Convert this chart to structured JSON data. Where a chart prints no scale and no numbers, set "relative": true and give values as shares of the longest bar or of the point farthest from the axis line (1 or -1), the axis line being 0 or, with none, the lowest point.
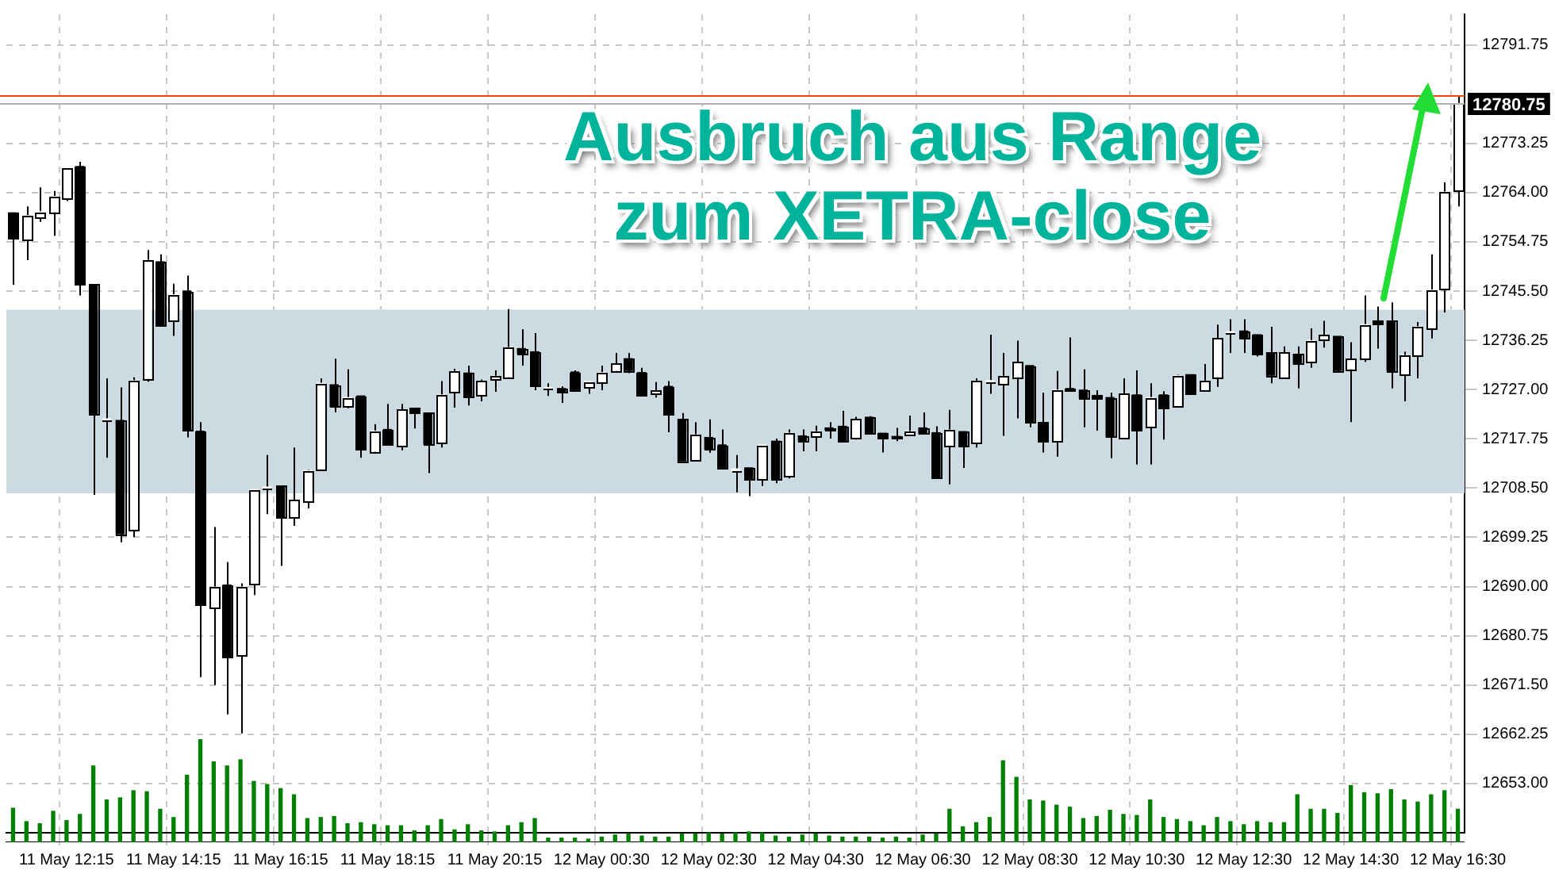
{
  "chart_data": [
    {
      "type": "candlestick",
      "categories": [
        null,
        null,
        null,
        null,
        "11 May 12:15",
        null,
        null,
        null,
        null,
        null,
        null,
        null,
        "11 May 14:15",
        null,
        null,
        null,
        null,
        null,
        null,
        null,
        "11 May 16:15",
        null,
        null,
        null,
        null,
        null,
        null,
        null,
        "11 May 18:15",
        null,
        null,
        null,
        null,
        null,
        null,
        null,
        "11 May 20:15",
        null,
        null,
        null,
        null,
        null,
        null,
        null,
        "12 May 00:30",
        null,
        null,
        null,
        null,
        null,
        null,
        null,
        "12 May 02:30",
        null,
        null,
        null,
        null,
        null,
        null,
        null,
        "12 May 04:30",
        null,
        null,
        null,
        null,
        null,
        null,
        null,
        "12 May 06:30",
        null,
        null,
        null,
        null,
        null,
        null,
        null,
        "12 May 08:30",
        null,
        null,
        null,
        null,
        null,
        null,
        null,
        "12 May 10:30",
        null,
        null,
        null,
        null,
        null,
        null,
        null,
        "12 May 12:30",
        null,
        null,
        null,
        null,
        null,
        null,
        null,
        "12 May 14:30",
        null,
        null,
        null,
        null,
        null,
        null,
        null,
        "12 May 16:30"
      ],
      "series": [
        {
          "colors": [
            "#000000",
            "#ffffff",
            "#ffffff",
            "#ffffff",
            "#ffffff",
            "#000000",
            "#000000",
            "#ffffff",
            "#000000",
            "#ffffff",
            "#ffffff",
            "#000000",
            "#ffffff",
            "#000000",
            "#000000",
            "#ffffff",
            "#000000",
            "#ffffff",
            "#ffffff",
            "#ffffff",
            "#000000",
            "#ffffff",
            "#ffffff",
            "#ffffff",
            "#000000",
            "#ffffff",
            "#000000",
            "#ffffff",
            "#000000",
            "#ffffff",
            "#000000",
            "#000000",
            "#ffffff",
            "#ffffff",
            "#000000",
            "#ffffff",
            "#ffffff",
            "#ffffff",
            "#000000",
            "#000000",
            "#ffffff",
            "#000000",
            "#000000",
            "#ffffff",
            "#ffffff",
            "#ffffff",
            "#000000",
            "#000000",
            "#ffffff",
            "#000000",
            "#000000",
            "#ffffff",
            "#000000",
            "#000000",
            "#ffffff",
            "#000000",
            "#ffffff",
            "#000000",
            "#ffffff",
            "#000000",
            "#ffffff",
            "#000000",
            "#000000",
            "#ffffff",
            "#000000",
            "#000000",
            "#000000",
            "#ffffff",
            "#000000",
            "#000000",
            "#ffffff",
            "#000000",
            "#ffffff",
            "#ffffff",
            "#ffffff",
            "#ffffff",
            "#000000",
            "#000000",
            "#ffffff",
            "#000000",
            "#000000",
            "#000000",
            "#000000",
            "#ffffff",
            "#000000",
            "#ffffff",
            "#000000",
            "#ffffff",
            "#000000",
            "#ffffff",
            "#ffffff",
            "#ffffff",
            "#000000",
            "#000000",
            "#000000",
            "#ffffff",
            "#000000",
            "#ffffff",
            "#ffffff",
            "#000000",
            "#ffffff",
            "#ffffff",
            "#000000",
            "#000000",
            "#ffffff",
            "#ffffff",
            "#ffffff",
            "#ffffff",
            "#ffffff"
          ],
          "ohlc": [
            [
              12760.2,
              12760.2,
              12746.7,
              12755.4
            ],
            [
              12755.1,
              12761.4,
              12751.3,
              12759.7
            ],
            [
              12759.3,
              12765.0,
              12758.5,
              12760.4
            ],
            [
              12760.4,
              12764.3,
              12755.9,
              12763.3
            ],
            [
              12762.9,
              12768.6,
              12762.4,
              12768.6
            ],
            [
              12768.9,
              12769.8,
              12744.7,
              12746.9
            ],
            [
              12746.7,
              12746.7,
              12707.2,
              12722.4
            ],
            [
              12721.2,
              12729.1,
              12714.2,
              12721.2
            ],
            [
              12721.2,
              12727.4,
              12698.3,
              12699.9
            ],
            [
              12700.7,
              12729.3,
              12699.3,
              12728.7
            ],
            [
              12729.1,
              12753.2,
              12728.5,
              12751.3
            ],
            [
              12751.0,
              12752.4,
              12739.2,
              12739.2
            ],
            [
              12739.9,
              12746.9,
              12737.1,
              12744.8
            ],
            [
              12745.5,
              12748.4,
              12718.0,
              12719.5
            ],
            [
              12719.2,
              12720.9,
              12673.0,
              12686.7
            ],
            [
              12686.0,
              12701.2,
              12671.5,
              12689.9
            ],
            [
              12690.3,
              12694.6,
              12666.0,
              12676.8
            ],
            [
              12677.1,
              12690.6,
              12662.4,
              12689.9
            ],
            [
              12690.4,
              12708.2,
              12688.4,
              12708.2
            ],
            [
              12708.4,
              12714.7,
              12703.6,
              12708.4
            ],
            [
              12708.9,
              12708.9,
              12693.9,
              12703.1
            ],
            [
              12703.1,
              12716.1,
              12701.4,
              12706.2
            ],
            [
              12706.0,
              12712.0,
              12704.7,
              12711.8
            ],
            [
              12712.1,
              12729.1,
              12712.1,
              12728.2
            ],
            [
              12727.9,
              12732.8,
              12722.7,
              12723.8
            ],
            [
              12723.8,
              12730.8,
              12723.5,
              12725.5
            ],
            [
              12725.8,
              12725.8,
              12714.2,
              12715.8
            ],
            [
              12715.4,
              12720.5,
              12715.2,
              12719.2
            ],
            [
              12719.5,
              12724.3,
              12716.8,
              12716.8
            ],
            [
              12716.4,
              12724.3,
              12715.6,
              12723.2
            ],
            [
              12723.5,
              12723.5,
              12719.7,
              12722.6
            ],
            [
              12722.6,
              12722.6,
              12711.3,
              12716.8
            ],
            [
              12717.1,
              12728.6,
              12716.1,
              12726.0
            ],
            [
              12726.6,
              12730.9,
              12723.6,
              12730.4
            ],
            [
              12730.1,
              12731.5,
              12724.0,
              12725.8
            ],
            [
              12726.0,
              12728.9,
              12724.8,
              12728.6
            ],
            [
              12729.0,
              12730.6,
              12726.6,
              12729.5
            ],
            [
              12729.4,
              12742.1,
              12729.1,
              12734.9
            ],
            [
              12734.7,
              12738.3,
              12731.5,
              12733.8
            ],
            [
              12734.1,
              12737.6,
              12726.9,
              12727.7
            ],
            [
              12727.1,
              12728.2,
              12725.8,
              12727.1
            ],
            [
              12727.2,
              12727.6,
              12724.5,
              12726.6
            ],
            [
              12730.3,
              12730.6,
              12726.8,
              12727.0
            ],
            [
              12727.5,
              12728.5,
              12726.2,
              12728.5
            ],
            [
              12728.4,
              12731.5,
              12726.9,
              12730.2
            ],
            [
              12730.6,
              12733.9,
              12730.3,
              12731.8
            ],
            [
              12732.8,
              12733.9,
              12730.1,
              12730.6
            ],
            [
              12730.2,
              12731.1,
              12725.7,
              12725.9
            ],
            [
              12726.3,
              12728.4,
              12725.5,
              12726.8
            ],
            [
              12727.6,
              12728.6,
              12719.0,
              12722.3
            ],
            [
              12721.4,
              12722.6,
              12713.6,
              12713.6
            ],
            [
              12713.9,
              12720.9,
              12713.9,
              12718.5
            ],
            [
              12718.0,
              12721.4,
              12715.1,
              12715.8
            ],
            [
              12716.6,
              12719.5,
              12712.4,
              12712.4
            ],
            [
              12711.8,
              12714.7,
              12707.7,
              12711.8
            ],
            [
              12712.3,
              12712.3,
              12707.0,
              12710.3
            ],
            [
              12710.3,
              12716.6,
              12708.9,
              12716.6
            ],
            [
              12717.3,
              12717.8,
              12709.4,
              12710.3
            ],
            [
              12710.8,
              12719.5,
              12710.3,
              12718.8
            ],
            [
              12718.3,
              12719.5,
              12715.4,
              12717.4
            ],
            [
              12718.2,
              12720.2,
              12715.4,
              12719.1
            ],
            [
              12719.8,
              12720.9,
              12717.8,
              12719.4
            ],
            [
              12720.1,
              12723.0,
              12717.3,
              12717.3
            ],
            [
              12717.9,
              12721.9,
              12717.6,
              12721.4
            ],
            [
              12721.8,
              12722.0,
              12718.7,
              12718.7
            ],
            [
              12718.8,
              12718.8,
              12715.2,
              12717.9
            ],
            [
              12718.2,
              12719.8,
              12717.3,
              12717.9
            ],
            [
              12718.5,
              12722.1,
              12718.5,
              12719.1
            ],
            [
              12719.8,
              12722.7,
              12718.7,
              12718.7
            ],
            [
              12718.9,
              12720.1,
              12710.3,
              12710.6
            ],
            [
              12716.5,
              12723.2,
              12709.2,
              12719.4
            ],
            [
              12719.1,
              12719.1,
              12712.3,
              12716.4
            ],
            [
              12717.1,
              12729.1,
              12716.1,
              12728.6
            ],
            [
              12728.4,
              12737.3,
              12726.2,
              12728.4
            ],
            [
              12728.1,
              12733.9,
              12718.3,
              12729.5
            ],
            [
              12729.4,
              12736.2,
              12721.6,
              12732.1
            ],
            [
              12731.5,
              12731.5,
              12719.9,
              12720.9
            ],
            [
              12720.8,
              12726.4,
              12715.2,
              12717.3
            ],
            [
              12717.3,
              12730.5,
              12714.4,
              12726.9
            ],
            [
              12727.2,
              12736.8,
              12726.8,
              12726.8
            ],
            [
              12726.9,
              12730.8,
              12719.9,
              12725.4
            ],
            [
              12725.9,
              12726.9,
              12719.3,
              12725.4
            ],
            [
              12725.5,
              12726.4,
              12714.1,
              12718.1
            ],
            [
              12718.0,
              12729.1,
              12718.0,
              12726.2
            ],
            [
              12726.0,
              12730.6,
              12712.9,
              12719.5
            ],
            [
              12719.9,
              12728.2,
              12712.9,
              12725.5
            ],
            [
              12726.0,
              12726.7,
              12717.6,
              12723.7
            ],
            [
              12724.0,
              12729.8,
              12724.0,
              12729.6
            ],
            [
              12729.8,
              12729.8,
              12726.2,
              12726.2
            ],
            [
              12727.0,
              12731.8,
              12727.0,
              12728.6
            ],
            [
              12729.4,
              12739.2,
              12727.5,
              12736.6
            ],
            [
              12737.6,
              12740.2,
              12733.9,
              12737.6
            ],
            [
              12738.0,
              12740.2,
              12733.9,
              12736.8
            ],
            [
              12737.3,
              12737.3,
              12733.2,
              12733.8
            ],
            [
              12733.9,
              12738.8,
              12728.2,
              12729.7
            ],
            [
              12729.4,
              12735.1,
              12729.1,
              12733.9
            ],
            [
              12733.6,
              12735.1,
              12727.2,
              12731.8
            ],
            [
              12732.3,
              12738.5,
              12731.1,
              12736.2
            ],
            [
              12736.4,
              12739.9,
              12734.9,
              12737.2
            ],
            [
              12737.0,
              12737.0,
              12730.3,
              12730.6
            ],
            [
              12730.9,
              12735.9,
              12720.9,
              12732.7
            ],
            [
              12732.8,
              12744.7,
              12732.2,
              12739.2
            ],
            [
              12739.9,
              12742.6,
              12734.7,
              12739.4
            ],
            [
              12739.9,
              12743.4,
              12727.2,
              12730.5
            ],
            [
              12729.8,
              12734.1,
              12724.8,
              12733.4
            ],
            [
              12733.5,
              12739.7,
              12729.1,
              12738.8
            ],
            [
              12738.5,
              12752.4,
              12736.6,
              12745.7
            ],
            [
              12746.0,
              12765.9,
              12741.5,
              12764.1
            ],
            [
              12764.5,
              12782.3,
              12761.4,
              12780.75
            ]
          ]
        }
      ],
      "ylim": [
        12643.75,
        12797.5
      ],
      "yticks": [
        {
          "value": 12653,
          "label": "12653.00"
        },
        {
          "value": 12662.25,
          "label": "12662.25"
        },
        {
          "value": 12671.5,
          "label": "12671.50"
        },
        {
          "value": 12680.75,
          "label": "12680.75"
        },
        {
          "value": 12690,
          "label": "12690.00"
        },
        {
          "value": 12699.25,
          "label": "12699.25"
        },
        {
          "value": 12708.5,
          "label": "12708.50"
        },
        {
          "value": 12717.75,
          "label": "12717.75"
        },
        {
          "value": 12727,
          "label": "12727.00"
        },
        {
          "value": 12736.25,
          "label": "12736.25"
        },
        {
          "value": 12745.5,
          "label": "12745.50"
        },
        {
          "value": 12754.75,
          "label": "12754.75"
        },
        {
          "value": 12764,
          "label": "12764.00"
        },
        {
          "value": 12773.25,
          "label": "12773.25"
        },
        {
          "value": 12791.75,
          "label": "12791.75"
        }
      ],
      "grid": true,
      "ref_lines": [
        {
          "axis": "y",
          "value": 12782.25,
          "color": "#ff4500"
        },
        {
          "axis": "y",
          "value": 12780.75,
          "label": "12780.75",
          "color": "#b0b0b0"
        }
      ],
      "bands": [
        {
          "axis": "y",
          "from": 12707.5,
          "to": 12742,
          "color": "#ccdae1"
        }
      ],
      "annotations": [
        "Ausbruch aus Range zum XETRA-close"
      ]
    },
    {
      "type": "bar",
      "relative": true,
      "color": "#008000",
      "categories": [
        null,
        null,
        null,
        null,
        null,
        null,
        null,
        null,
        null,
        null,
        null,
        null,
        null,
        null,
        null,
        null,
        null,
        null,
        null,
        null,
        null,
        null,
        null,
        null,
        null,
        null,
        null,
        null,
        null,
        null,
        null,
        null,
        null,
        null,
        null,
        null,
        null,
        null,
        null,
        null,
        null,
        null,
        null,
        null,
        null,
        null,
        null,
        null,
        null,
        null,
        null,
        null,
        null,
        null,
        null,
        null,
        null,
        null,
        null,
        null,
        null,
        null,
        null,
        null,
        null,
        null,
        null,
        null,
        null,
        null,
        null,
        null,
        null,
        null,
        null,
        null,
        null,
        null,
        null,
        null,
        null,
        null,
        null,
        null,
        null,
        null,
        null,
        null,
        null,
        null,
        null,
        null,
        null,
        null,
        null,
        null,
        null,
        null,
        null,
        null,
        null,
        null,
        null,
        null,
        null,
        null,
        null,
        null,
        null
      ],
      "values": [
        0.33,
        0.2,
        0.18,
        0.3,
        0.21,
        0.27,
        0.74,
        0.41,
        0.43,
        0.5,
        0.49,
        0.32,
        0.24,
        0.65,
        1,
        0.78,
        0.74,
        0.8,
        0.59,
        0.56,
        0.52,
        0.46,
        0.23,
        0.24,
        0.25,
        0.18,
        0.19,
        0.17,
        0.16,
        0.16,
        0.11,
        0.16,
        0.22,
        0.12,
        0.17,
        0.11,
        0.1,
        0.16,
        0.19,
        0.23,
        0.04,
        0.04,
        0.04,
        0.03,
        0.05,
        0.07,
        0.08,
        0.06,
        0.05,
        0.05,
        0.08,
        0.08,
        0.09,
        0.08,
        0.09,
        0.1,
        0.09,
        0.06,
        0.05,
        0.07,
        0.08,
        0.06,
        0.05,
        0.05,
        0.05,
        0.04,
        0.05,
        0.04,
        0.07,
        0.08,
        0.32,
        0.15,
        0.19,
        0.24,
        0.79,
        0.63,
        0.41,
        0.4,
        0.36,
        0.34,
        0.23,
        0.25,
        0.31,
        0.27,
        0.26,
        0.41,
        0.24,
        0.22,
        0.2,
        0.16,
        0.24,
        0.2,
        0.17,
        0.2,
        0.19,
        0.19,
        0.46,
        0.32,
        0.32,
        0.28,
        0.55,
        0.48,
        0.47,
        0.51,
        0.41,
        0.39,
        0.46,
        0.5,
        0.32
      ]
    }
  ]
}
